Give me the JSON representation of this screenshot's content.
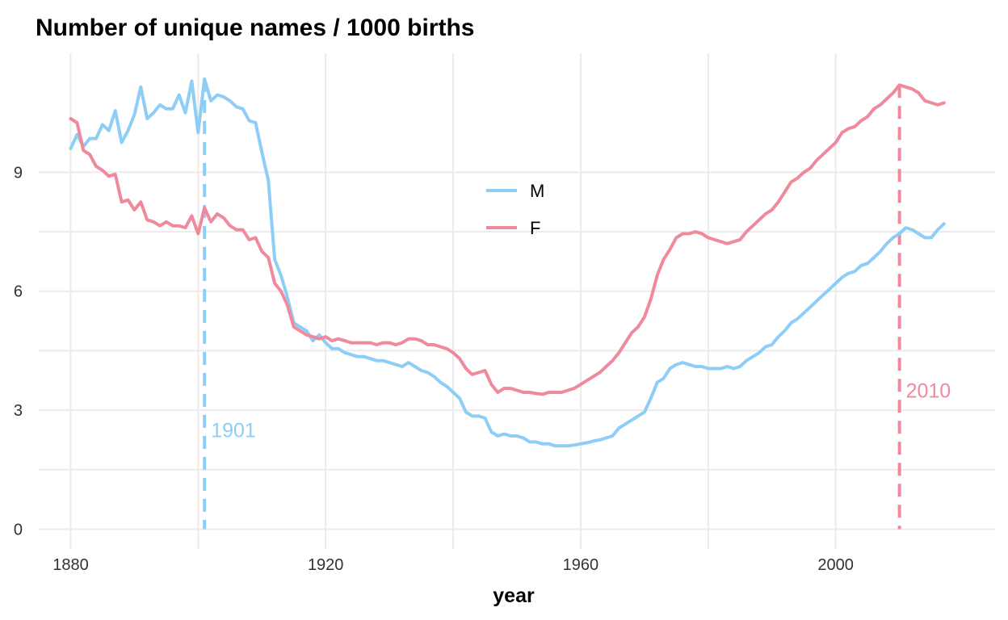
{
  "chart_data": {
    "type": "line",
    "title": "Number of unique names / 1000 births",
    "xlabel": "year",
    "ylabel": "",
    "xlim": [
      1875,
      2025
    ],
    "ylim": [
      -0.5,
      12
    ],
    "xticks": [
      1880,
      1920,
      1960,
      2000
    ],
    "yticks": [
      0,
      3,
      6,
      9
    ],
    "grid": true,
    "legend_position": "inside-center-top",
    "series": [
      {
        "name": "M",
        "color": "#8ecdf5",
        "points": [
          [
            1880,
            9.6
          ],
          [
            1881,
            9.95
          ],
          [
            1882,
            9.65
          ],
          [
            1883,
            9.85
          ],
          [
            1884,
            9.85
          ],
          [
            1885,
            10.2
          ],
          [
            1886,
            10.05
          ],
          [
            1887,
            10.55
          ],
          [
            1888,
            9.75
          ],
          [
            1889,
            10.05
          ],
          [
            1890,
            10.45
          ],
          [
            1891,
            11.15
          ],
          [
            1892,
            10.35
          ],
          [
            1893,
            10.5
          ],
          [
            1894,
            10.7
          ],
          [
            1895,
            10.6
          ],
          [
            1896,
            10.6
          ],
          [
            1897,
            10.95
          ],
          [
            1898,
            10.5
          ],
          [
            1899,
            11.3
          ],
          [
            1900,
            10.0
          ],
          [
            1901,
            11.35
          ],
          [
            1902,
            10.8
          ],
          [
            1903,
            10.95
          ],
          [
            1904,
            10.9
          ],
          [
            1905,
            10.8
          ],
          [
            1906,
            10.65
          ],
          [
            1907,
            10.6
          ],
          [
            1908,
            10.3
          ],
          [
            1909,
            10.25
          ],
          [
            1910,
            9.5
          ],
          [
            1911,
            8.8
          ],
          [
            1912,
            6.8
          ],
          [
            1913,
            6.4
          ],
          [
            1914,
            5.85
          ],
          [
            1915,
            5.2
          ],
          [
            1916,
            5.1
          ],
          [
            1917,
            5.0
          ],
          [
            1918,
            4.75
          ],
          [
            1919,
            4.9
          ],
          [
            1920,
            4.7
          ],
          [
            1921,
            4.55
          ],
          [
            1922,
            4.55
          ],
          [
            1923,
            4.45
          ],
          [
            1924,
            4.4
          ],
          [
            1925,
            4.35
          ],
          [
            1926,
            4.35
          ],
          [
            1927,
            4.3
          ],
          [
            1928,
            4.25
          ],
          [
            1929,
            4.25
          ],
          [
            1930,
            4.2
          ],
          [
            1931,
            4.15
          ],
          [
            1932,
            4.1
          ],
          [
            1933,
            4.2
          ],
          [
            1934,
            4.1
          ],
          [
            1935,
            4.0
          ],
          [
            1936,
            3.95
          ],
          [
            1937,
            3.85
          ],
          [
            1938,
            3.7
          ],
          [
            1939,
            3.6
          ],
          [
            1940,
            3.45
          ],
          [
            1941,
            3.3
          ],
          [
            1942,
            2.95
          ],
          [
            1943,
            2.85
          ],
          [
            1944,
            2.85
          ],
          [
            1945,
            2.8
          ],
          [
            1946,
            2.45
          ],
          [
            1947,
            2.35
          ],
          [
            1948,
            2.4
          ],
          [
            1949,
            2.35
          ],
          [
            1950,
            2.35
          ],
          [
            1951,
            2.3
          ],
          [
            1952,
            2.2
          ],
          [
            1953,
            2.2
          ],
          [
            1954,
            2.15
          ],
          [
            1955,
            2.15
          ],
          [
            1956,
            2.1
          ],
          [
            1957,
            2.1
          ],
          [
            1958,
            2.1
          ],
          [
            1959,
            2.12
          ],
          [
            1960,
            2.15
          ],
          [
            1961,
            2.18
          ],
          [
            1962,
            2.22
          ],
          [
            1963,
            2.25
          ],
          [
            1964,
            2.3
          ],
          [
            1965,
            2.35
          ],
          [
            1966,
            2.55
          ],
          [
            1967,
            2.65
          ],
          [
            1968,
            2.75
          ],
          [
            1969,
            2.85
          ],
          [
            1970,
            2.95
          ],
          [
            1971,
            3.3
          ],
          [
            1972,
            3.7
          ],
          [
            1973,
            3.8
          ],
          [
            1974,
            4.05
          ],
          [
            1975,
            4.15
          ],
          [
            1976,
            4.2
          ],
          [
            1977,
            4.15
          ],
          [
            1978,
            4.1
          ],
          [
            1979,
            4.1
          ],
          [
            1980,
            4.05
          ],
          [
            1981,
            4.05
          ],
          [
            1982,
            4.05
          ],
          [
            1983,
            4.1
          ],
          [
            1984,
            4.05
          ],
          [
            1985,
            4.1
          ],
          [
            1986,
            4.25
          ],
          [
            1987,
            4.35
          ],
          [
            1988,
            4.45
          ],
          [
            1989,
            4.6
          ],
          [
            1990,
            4.65
          ],
          [
            1991,
            4.85
          ],
          [
            1992,
            5.0
          ],
          [
            1993,
            5.2
          ],
          [
            1994,
            5.3
          ],
          [
            1995,
            5.45
          ],
          [
            1996,
            5.6
          ],
          [
            1997,
            5.75
          ],
          [
            1998,
            5.9
          ],
          [
            1999,
            6.05
          ],
          [
            2000,
            6.2
          ],
          [
            2001,
            6.35
          ],
          [
            2002,
            6.45
          ],
          [
            2003,
            6.5
          ],
          [
            2004,
            6.65
          ],
          [
            2005,
            6.7
          ],
          [
            2006,
            6.85
          ],
          [
            2007,
            7.0
          ],
          [
            2008,
            7.2
          ],
          [
            2009,
            7.35
          ],
          [
            2010,
            7.45
          ],
          [
            2011,
            7.6
          ],
          [
            2012,
            7.55
          ],
          [
            2013,
            7.45
          ],
          [
            2014,
            7.35
          ],
          [
            2015,
            7.35
          ],
          [
            2016,
            7.55
          ],
          [
            2017,
            7.7
          ]
        ]
      },
      {
        "name": "F",
        "color": "#ef8a9c",
        "points": [
          [
            1880,
            10.35
          ],
          [
            1881,
            10.25
          ],
          [
            1882,
            9.55
          ],
          [
            1883,
            9.45
          ],
          [
            1884,
            9.15
          ],
          [
            1885,
            9.05
          ],
          [
            1886,
            8.9
          ],
          [
            1887,
            8.95
          ],
          [
            1888,
            8.25
          ],
          [
            1889,
            8.3
          ],
          [
            1890,
            8.05
          ],
          [
            1891,
            8.25
          ],
          [
            1892,
            7.8
          ],
          [
            1893,
            7.75
          ],
          [
            1894,
            7.65
          ],
          [
            1895,
            7.75
          ],
          [
            1896,
            7.65
          ],
          [
            1897,
            7.65
          ],
          [
            1898,
            7.6
          ],
          [
            1899,
            7.9
          ],
          [
            1900,
            7.45
          ],
          [
            1901,
            8.1
          ],
          [
            1902,
            7.75
          ],
          [
            1903,
            7.95
          ],
          [
            1904,
            7.85
          ],
          [
            1905,
            7.65
          ],
          [
            1906,
            7.55
          ],
          [
            1907,
            7.55
          ],
          [
            1908,
            7.3
          ],
          [
            1909,
            7.35
          ],
          [
            1910,
            7.0
          ],
          [
            1911,
            6.85
          ],
          [
            1912,
            6.2
          ],
          [
            1913,
            6.0
          ],
          [
            1914,
            5.65
          ],
          [
            1915,
            5.1
          ],
          [
            1916,
            5.0
          ],
          [
            1917,
            4.9
          ],
          [
            1918,
            4.85
          ],
          [
            1919,
            4.8
          ],
          [
            1920,
            4.85
          ],
          [
            1921,
            4.75
          ],
          [
            1922,
            4.8
          ],
          [
            1923,
            4.75
          ],
          [
            1924,
            4.7
          ],
          [
            1925,
            4.7
          ],
          [
            1926,
            4.7
          ],
          [
            1927,
            4.7
          ],
          [
            1928,
            4.65
          ],
          [
            1929,
            4.7
          ],
          [
            1930,
            4.7
          ],
          [
            1931,
            4.65
          ],
          [
            1932,
            4.7
          ],
          [
            1933,
            4.8
          ],
          [
            1934,
            4.8
          ],
          [
            1935,
            4.75
          ],
          [
            1936,
            4.65
          ],
          [
            1937,
            4.65
          ],
          [
            1938,
            4.6
          ],
          [
            1939,
            4.55
          ],
          [
            1940,
            4.45
          ],
          [
            1941,
            4.3
          ],
          [
            1942,
            4.05
          ],
          [
            1943,
            3.9
          ],
          [
            1944,
            3.95
          ],
          [
            1945,
            4.0
          ],
          [
            1946,
            3.65
          ],
          [
            1947,
            3.45
          ],
          [
            1948,
            3.55
          ],
          [
            1949,
            3.55
          ],
          [
            1950,
            3.5
          ],
          [
            1951,
            3.45
          ],
          [
            1952,
            3.45
          ],
          [
            1953,
            3.42
          ],
          [
            1954,
            3.4
          ],
          [
            1955,
            3.45
          ],
          [
            1956,
            3.45
          ],
          [
            1957,
            3.45
          ],
          [
            1958,
            3.5
          ],
          [
            1959,
            3.55
          ],
          [
            1960,
            3.65
          ],
          [
            1961,
            3.75
          ],
          [
            1962,
            3.85
          ],
          [
            1963,
            3.95
          ],
          [
            1964,
            4.1
          ],
          [
            1965,
            4.25
          ],
          [
            1966,
            4.45
          ],
          [
            1967,
            4.7
          ],
          [
            1968,
            4.95
          ],
          [
            1969,
            5.1
          ],
          [
            1970,
            5.35
          ],
          [
            1971,
            5.8
          ],
          [
            1972,
            6.4
          ],
          [
            1973,
            6.8
          ],
          [
            1974,
            7.05
          ],
          [
            1975,
            7.35
          ],
          [
            1976,
            7.45
          ],
          [
            1977,
            7.45
          ],
          [
            1978,
            7.5
          ],
          [
            1979,
            7.45
          ],
          [
            1980,
            7.35
          ],
          [
            1981,
            7.3
          ],
          [
            1982,
            7.25
          ],
          [
            1983,
            7.2
          ],
          [
            1984,
            7.25
          ],
          [
            1985,
            7.3
          ],
          [
            1986,
            7.5
          ],
          [
            1987,
            7.65
          ],
          [
            1988,
            7.8
          ],
          [
            1989,
            7.95
          ],
          [
            1990,
            8.05
          ],
          [
            1991,
            8.25
          ],
          [
            1992,
            8.5
          ],
          [
            1993,
            8.75
          ],
          [
            1994,
            8.85
          ],
          [
            1995,
            9.0
          ],
          [
            1996,
            9.1
          ],
          [
            1997,
            9.3
          ],
          [
            1998,
            9.45
          ],
          [
            1999,
            9.6
          ],
          [
            2000,
            9.75
          ],
          [
            2001,
            10.0
          ],
          [
            2002,
            10.1
          ],
          [
            2003,
            10.15
          ],
          [
            2004,
            10.3
          ],
          [
            2005,
            10.4
          ],
          [
            2006,
            10.6
          ],
          [
            2007,
            10.7
          ],
          [
            2008,
            10.85
          ],
          [
            2009,
            11.0
          ],
          [
            2010,
            11.2
          ],
          [
            2011,
            11.15
          ],
          [
            2012,
            11.1
          ],
          [
            2013,
            11.0
          ],
          [
            2014,
            10.8
          ],
          [
            2015,
            10.75
          ],
          [
            2016,
            10.7
          ],
          [
            2017,
            10.75
          ]
        ]
      }
    ],
    "annotations": [
      {
        "label": "1901",
        "x": 1901,
        "series": "M",
        "color": "#8ecdf5",
        "label_y": 2.5
      },
      {
        "label": "2010",
        "x": 2010,
        "series": "F",
        "color": "#ef8a9c",
        "label_y": 3.5
      }
    ]
  }
}
